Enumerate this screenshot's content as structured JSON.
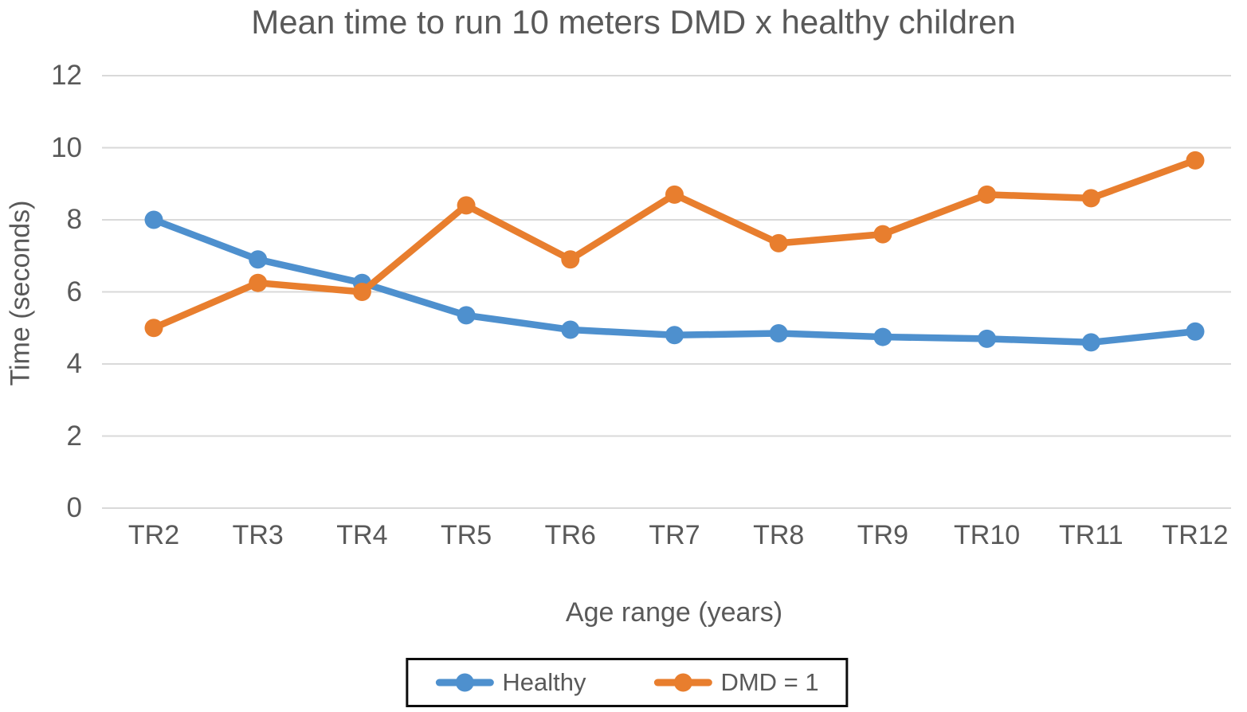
{
  "chart_data": {
    "type": "line",
    "title": "Mean time to run 10 meters DMD x healthy children",
    "xlabel": "Age range (years)",
    "ylabel": "Time (seconds)",
    "categories": [
      "TR2",
      "TR3",
      "TR4",
      "TR5",
      "TR6",
      "TR7",
      "TR8",
      "TR9",
      "TR10",
      "TR11",
      "TR12"
    ],
    "y_ticks": [
      0,
      2,
      4,
      6,
      8,
      10,
      12
    ],
    "ylim": [
      0,
      12
    ],
    "grid": true,
    "legend_position": "bottom",
    "series": [
      {
        "name": "Healthy",
        "color": "#4E90CE",
        "marker": "circle",
        "values": [
          8.0,
          6.9,
          6.25,
          5.35,
          4.95,
          4.8,
          4.85,
          4.75,
          4.7,
          4.6,
          4.9
        ]
      },
      {
        "name": "DMD = 1",
        "color": "#E87E2E",
        "marker": "circle",
        "values": [
          5.0,
          6.25,
          6.0,
          8.4,
          6.9,
          8.7,
          7.35,
          7.6,
          8.7,
          8.6,
          9.65
        ]
      }
    ],
    "colors": {
      "text": "#595959",
      "gridline": "#D9D9D9",
      "legend_border": "#0D0D0D",
      "background": "#FFFFFF"
    }
  }
}
